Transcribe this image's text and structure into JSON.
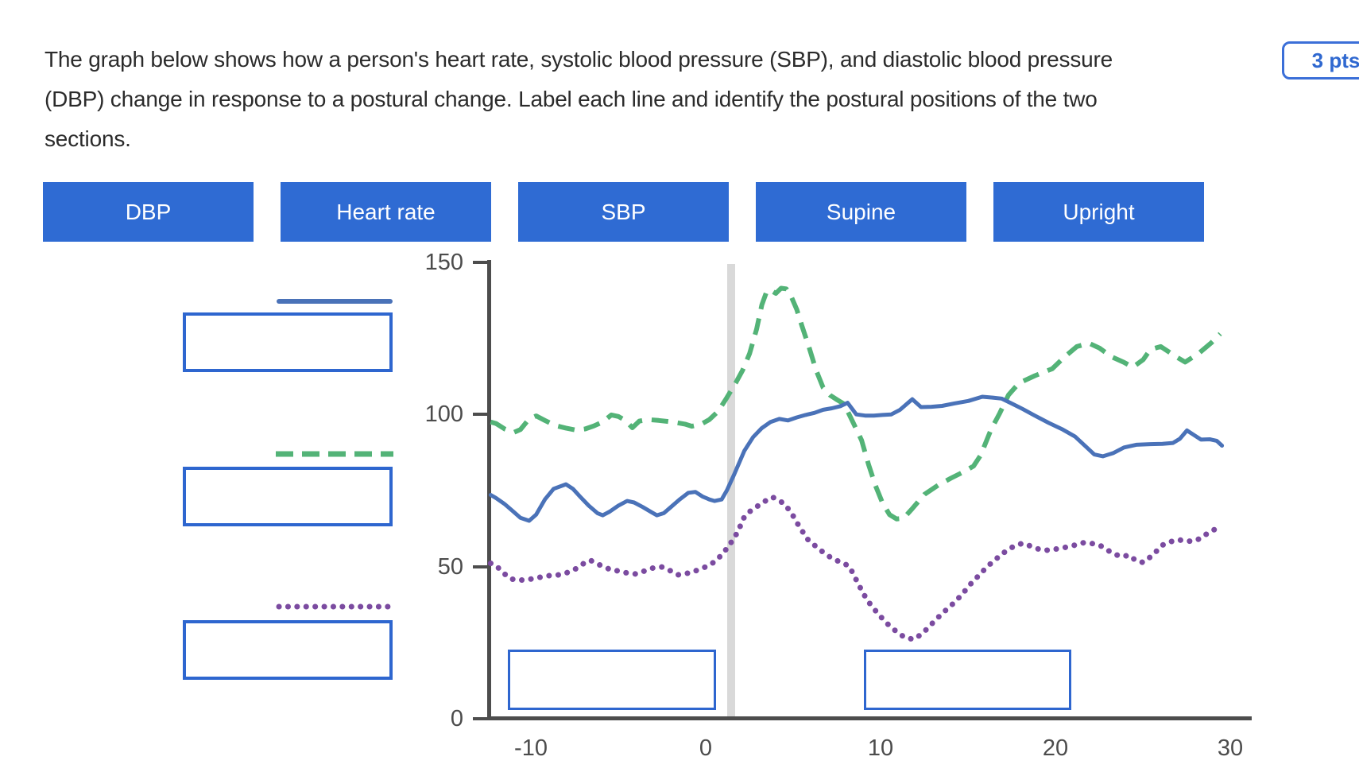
{
  "question": {
    "lines": [
      "The graph below shows how a person's heart rate, systolic blood pressure (SBP), and diastolic blood pressure",
      "(DBP) change in response to a postural change. Label each line and identify the postural positions of the two",
      "sections."
    ],
    "points_label": "3 pts"
  },
  "tokens": [
    {
      "label": "DBP"
    },
    {
      "label": "Heart rate"
    },
    {
      "label": "SBP"
    },
    {
      "label": "Supine"
    },
    {
      "label": "Upright"
    }
  ],
  "legend": [
    {
      "sample": "solid-blue-line",
      "answer": ""
    },
    {
      "sample": "dashed-green-line",
      "answer": ""
    },
    {
      "sample": "dotted-purple-line",
      "answer": ""
    }
  ],
  "colors": {
    "token_blue": "#2f6bd3",
    "box_border_blue": "#2e66cf",
    "badge_blue": "#2f68d0",
    "axis_gray": "#4d4d4d",
    "band_gray": "#d9d9d9",
    "line_blue": "#4a72b8",
    "line_green": "#53b377",
    "line_purple": "#7b4ba0"
  },
  "chart_data": {
    "type": "line",
    "title": "",
    "xlabel": "",
    "ylabel": "",
    "xlim": [
      -12.3,
      31.2
    ],
    "ylim": [
      0,
      150
    ],
    "x_tick_values": [
      -10,
      0,
      10,
      20,
      30
    ],
    "x_tick_labels": [
      "-10",
      "0",
      "10",
      "20",
      "30"
    ],
    "y_tick_values": [
      150,
      100,
      50,
      0
    ],
    "y_tick_labels": [
      "150",
      "100",
      "50",
      "0"
    ],
    "grid": false,
    "legend_position": "left-external-unlabeled-droptargets",
    "event_band_x": [
      1.2,
      1.7
    ],
    "drop_zones_x": [
      [
        -11.3,
        0.6
      ],
      [
        9.0,
        20.9
      ]
    ],
    "series": [
      {
        "name": "dashed-green-line",
        "style": "dashed",
        "color": "#53b377",
        "points": [
          [
            -12.3,
            97.5
          ],
          [
            -12,
            97
          ],
          [
            -11.5,
            95.2
          ],
          [
            -11,
            94
          ],
          [
            -10.6,
            95
          ],
          [
            -10.1,
            98.5
          ],
          [
            -9.7,
            99.5
          ],
          [
            -9.2,
            98
          ],
          [
            -8.6,
            96.3
          ],
          [
            -8,
            95.5
          ],
          [
            -7.4,
            94.8
          ],
          [
            -6.9,
            95.2
          ],
          [
            -6.4,
            96.2
          ],
          [
            -5.9,
            97.5
          ],
          [
            -5.4,
            99.8
          ],
          [
            -5,
            99.3
          ],
          [
            -4.6,
            98
          ],
          [
            -4.2,
            95.6
          ],
          [
            -3.8,
            97.8
          ],
          [
            -3.3,
            98.3
          ],
          [
            -2.7,
            98
          ],
          [
            -2.2,
            97.7
          ],
          [
            -1.7,
            97.3
          ],
          [
            -1.2,
            96.8
          ],
          [
            -0.8,
            96.1
          ],
          [
            -0.3,
            96.7
          ],
          [
            0.2,
            98.3
          ],
          [
            0.7,
            101
          ],
          [
            1.2,
            105.5
          ],
          [
            1.7,
            110.3
          ],
          [
            2.1,
            114.5
          ],
          [
            2.5,
            120
          ],
          [
            2.9,
            128
          ],
          [
            3.2,
            136
          ],
          [
            3.5,
            140.8
          ],
          [
            3.8,
            140.5
          ],
          [
            4,
            139.8
          ],
          [
            4.3,
            141.5
          ],
          [
            4.6,
            141.3
          ],
          [
            4.9,
            138.5
          ],
          [
            5.2,
            134.5
          ],
          [
            5.5,
            129
          ],
          [
            5.9,
            122
          ],
          [
            6.3,
            114.5
          ],
          [
            6.7,
            108.8
          ],
          [
            7.1,
            106.3
          ],
          [
            7.5,
            104.8
          ],
          [
            7.9,
            103.4
          ],
          [
            8.4,
            97.5
          ],
          [
            8.9,
            91.5
          ],
          [
            9.3,
            83.5
          ],
          [
            9.7,
            76.5
          ],
          [
            10.1,
            70.8
          ],
          [
            10.5,
            67
          ],
          [
            10.9,
            65.6
          ],
          [
            11.3,
            65.8
          ],
          [
            11.8,
            69
          ],
          [
            12.5,
            73.7
          ],
          [
            13.3,
            76.8
          ],
          [
            14,
            79
          ],
          [
            14.8,
            81.3
          ],
          [
            15.3,
            83
          ],
          [
            15.7,
            86.5
          ],
          [
            16.3,
            95
          ],
          [
            16.8,
            100.4
          ],
          [
            17.3,
            106.4
          ],
          [
            17.9,
            110.3
          ],
          [
            18.8,
            112.7
          ],
          [
            19.8,
            115
          ],
          [
            20.5,
            118.9
          ],
          [
            21.2,
            122.3
          ],
          [
            21.9,
            123.4
          ],
          [
            22.5,
            121.8
          ],
          [
            23.2,
            118.9
          ],
          [
            23.9,
            117.1
          ],
          [
            24.4,
            115.5
          ],
          [
            25,
            118
          ],
          [
            25.4,
            121.3
          ],
          [
            26,
            122.3
          ],
          [
            26.9,
            118.9
          ],
          [
            27.4,
            117.2
          ],
          [
            28.2,
            120.2
          ],
          [
            28.9,
            123.6
          ],
          [
            29.4,
            126.5
          ]
        ]
      },
      {
        "name": "solid-blue-line",
        "style": "solid",
        "color": "#4a72b8",
        "points": [
          [
            -12.3,
            73.5
          ],
          [
            -12,
            72.5
          ],
          [
            -11.5,
            70.5
          ],
          [
            -11,
            68
          ],
          [
            -10.6,
            66
          ],
          [
            -10.1,
            65
          ],
          [
            -9.7,
            67
          ],
          [
            -9.2,
            72
          ],
          [
            -8.7,
            75.5
          ],
          [
            -8,
            77
          ],
          [
            -7.6,
            75.5
          ],
          [
            -7.2,
            73
          ],
          [
            -6.7,
            70
          ],
          [
            -6.2,
            67.5
          ],
          [
            -5.9,
            66.8
          ],
          [
            -5.5,
            68
          ],
          [
            -5,
            70
          ],
          [
            -4.5,
            71.5
          ],
          [
            -4.1,
            71
          ],
          [
            -3.6,
            69.5
          ],
          [
            -3.1,
            67.8
          ],
          [
            -2.8,
            66.8
          ],
          [
            -2.4,
            67.5
          ],
          [
            -2,
            69.5
          ],
          [
            -1.5,
            72
          ],
          [
            -1,
            74.2
          ],
          [
            -0.6,
            74.5
          ],
          [
            -0.2,
            73
          ],
          [
            0.2,
            72
          ],
          [
            0.5,
            71.5
          ],
          [
            0.9,
            72
          ],
          [
            1.2,
            75
          ],
          [
            1.6,
            80
          ],
          [
            2.2,
            88
          ],
          [
            2.7,
            92.5
          ],
          [
            3.2,
            95.5
          ],
          [
            3.7,
            97.5
          ],
          [
            4.2,
            98.5
          ],
          [
            4.7,
            98
          ],
          [
            5.2,
            99
          ],
          [
            5.7,
            99.8
          ],
          [
            6.2,
            100.5
          ],
          [
            6.7,
            101.5
          ],
          [
            7.2,
            102
          ],
          [
            7.7,
            102.7
          ],
          [
            8.1,
            103.8
          ],
          [
            8.6,
            100
          ],
          [
            9.1,
            99.6
          ],
          [
            9.6,
            99.6
          ],
          [
            10.1,
            99.8
          ],
          [
            10.6,
            100
          ],
          [
            11.1,
            101.5
          ],
          [
            11.8,
            105
          ],
          [
            12.3,
            102.4
          ],
          [
            12.9,
            102.5
          ],
          [
            13.5,
            102.8
          ],
          [
            14.2,
            103.6
          ],
          [
            15,
            104.4
          ],
          [
            15.8,
            105.8
          ],
          [
            16.4,
            105.5
          ],
          [
            16.9,
            105.2
          ],
          [
            17.4,
            103.8
          ],
          [
            18.1,
            101.8
          ],
          [
            18.8,
            99.6
          ],
          [
            19.6,
            97.2
          ],
          [
            20.4,
            95
          ],
          [
            21.1,
            92.7
          ],
          [
            21.7,
            89.5
          ],
          [
            22.2,
            86.8
          ],
          [
            22.7,
            86.2
          ],
          [
            23.3,
            87.3
          ],
          [
            23.9,
            89.1
          ],
          [
            24.6,
            90
          ],
          [
            25.4,
            90.2
          ],
          [
            26.1,
            90.3
          ],
          [
            26.7,
            90.6
          ],
          [
            27.1,
            92
          ],
          [
            27.5,
            94.7
          ],
          [
            27.9,
            93.2
          ],
          [
            28.3,
            91.7
          ],
          [
            28.8,
            91.8
          ],
          [
            29.2,
            91.3
          ],
          [
            29.5,
            89.7
          ]
        ]
      },
      {
        "name": "dotted-purple-line",
        "style": "dotted",
        "color": "#7b4ba0",
        "points": [
          [
            -12.3,
            51
          ],
          [
            -12,
            50.3
          ],
          [
            -11.6,
            48
          ],
          [
            -11.2,
            46
          ],
          [
            -10.8,
            45.4
          ],
          [
            -10.3,
            45.6
          ],
          [
            -9.9,
            45.9
          ],
          [
            -9.4,
            46.5
          ],
          [
            -8.9,
            47
          ],
          [
            -8.4,
            47.2
          ],
          [
            -7.9,
            48
          ],
          [
            -7.4,
            49.3
          ],
          [
            -6.9,
            51.3
          ],
          [
            -6.6,
            52
          ],
          [
            -6.3,
            51.1
          ],
          [
            -5.9,
            50
          ],
          [
            -5.4,
            48.8
          ],
          [
            -5,
            48.5
          ],
          [
            -4.5,
            47.8
          ],
          [
            -4,
            47.5
          ],
          [
            -3.5,
            48.5
          ],
          [
            -3,
            49.5
          ],
          [
            -2.5,
            49.8
          ],
          [
            -2,
            48.5
          ],
          [
            -1.6,
            47.2
          ],
          [
            -1.2,
            47.6
          ],
          [
            -0.8,
            48
          ],
          [
            -0.4,
            49
          ],
          [
            0.1,
            50.1
          ],
          [
            0.6,
            51.9
          ],
          [
            1,
            54.5
          ],
          [
            1.3,
            56.6
          ],
          [
            1.8,
            61.1
          ],
          [
            2.2,
            66.3
          ],
          [
            2.6,
            68.5
          ],
          [
            3,
            70
          ],
          [
            3.4,
            71.5
          ],
          [
            3.8,
            72.8
          ],
          [
            4.1,
            72
          ],
          [
            4.5,
            70.5
          ],
          [
            4.9,
            67.5
          ],
          [
            5.3,
            63.5
          ],
          [
            5.8,
            59
          ],
          [
            6.3,
            56.5
          ],
          [
            6.8,
            54.2
          ],
          [
            7.3,
            52.3
          ],
          [
            7.8,
            51.2
          ],
          [
            8.2,
            50
          ],
          [
            8.6,
            45.5
          ],
          [
            9,
            41
          ],
          [
            9.4,
            37.5
          ],
          [
            9.9,
            34
          ],
          [
            10.4,
            31
          ],
          [
            10.9,
            28.5
          ],
          [
            11.4,
            26.5
          ],
          [
            11.9,
            26
          ],
          [
            12.4,
            28
          ],
          [
            12.9,
            31
          ],
          [
            13.5,
            34.5
          ],
          [
            14,
            37
          ],
          [
            14.6,
            40.5
          ],
          [
            15.1,
            44
          ],
          [
            15.6,
            47
          ],
          [
            16.1,
            50
          ],
          [
            16.6,
            52.5
          ],
          [
            17.1,
            54.8
          ],
          [
            17.6,
            56.6
          ],
          [
            18.1,
            57.6
          ],
          [
            18.6,
            56.6
          ],
          [
            19.1,
            55.5
          ],
          [
            19.6,
            55.3
          ],
          [
            20.1,
            55.8
          ],
          [
            20.6,
            56.3
          ],
          [
            21.1,
            57
          ],
          [
            21.6,
            57.8
          ],
          [
            22.1,
            57.5
          ],
          [
            22.5,
            57
          ],
          [
            23,
            55.2
          ],
          [
            23.4,
            53.9
          ],
          [
            23.8,
            53.2
          ],
          [
            24.2,
            53.7
          ],
          [
            24.6,
            51.8
          ],
          [
            25,
            51.3
          ],
          [
            25.5,
            53.5
          ],
          [
            26.1,
            57
          ],
          [
            26.5,
            58
          ],
          [
            27,
            58.8
          ],
          [
            27.4,
            58.3
          ],
          [
            27.9,
            58.3
          ],
          [
            28.3,
            59.3
          ],
          [
            28.7,
            61
          ],
          [
            29.2,
            62.5
          ]
        ]
      }
    ]
  }
}
